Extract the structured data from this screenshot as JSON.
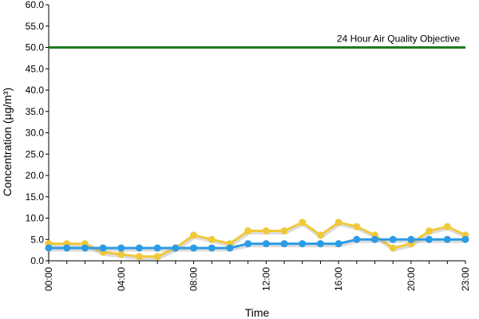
{
  "chart_data": {
    "type": "line",
    "xlabel": "Time",
    "ylabel": "Concentration (µg/m³)",
    "ylim": [
      0,
      60
    ],
    "y_ticks": [
      "0.0",
      "5.0",
      "10.0",
      "15.0",
      "20.0",
      "25.0",
      "30.0",
      "35.0",
      "40.0",
      "45.0",
      "50.0",
      "55.0",
      "60.0"
    ],
    "x_tick_labels": [
      "00:00",
      "04:00",
      "08:00",
      "12:00",
      "16:00",
      "20:00",
      "23:00"
    ],
    "x_tick_hours": [
      0,
      4,
      8,
      12,
      16,
      20,
      23
    ],
    "grid": false,
    "x": [
      0,
      1,
      2,
      3,
      4,
      5,
      6,
      7,
      8,
      9,
      10,
      11,
      12,
      13,
      14,
      15,
      16,
      17,
      18,
      19,
      20,
      21,
      22,
      23
    ],
    "series": [
      {
        "color": "#f0c93a",
        "values": [
          4,
          4,
          4,
          2,
          1.5,
          1,
          1,
          3,
          6,
          5,
          4,
          7,
          7,
          7,
          9,
          6,
          9,
          8,
          6,
          3,
          4,
          7,
          8,
          6
        ]
      },
      {
        "color": "#2c9be6",
        "values": [
          3,
          3,
          3,
          3,
          3,
          3,
          3,
          3,
          3,
          3,
          3,
          4,
          4,
          4,
          4,
          4,
          4,
          5,
          5,
          5,
          5,
          5,
          5,
          5
        ]
      }
    ],
    "objective": {
      "label": "24 Hour Air Quality Objective",
      "value": 50,
      "color": "#1f7a1f"
    }
  }
}
